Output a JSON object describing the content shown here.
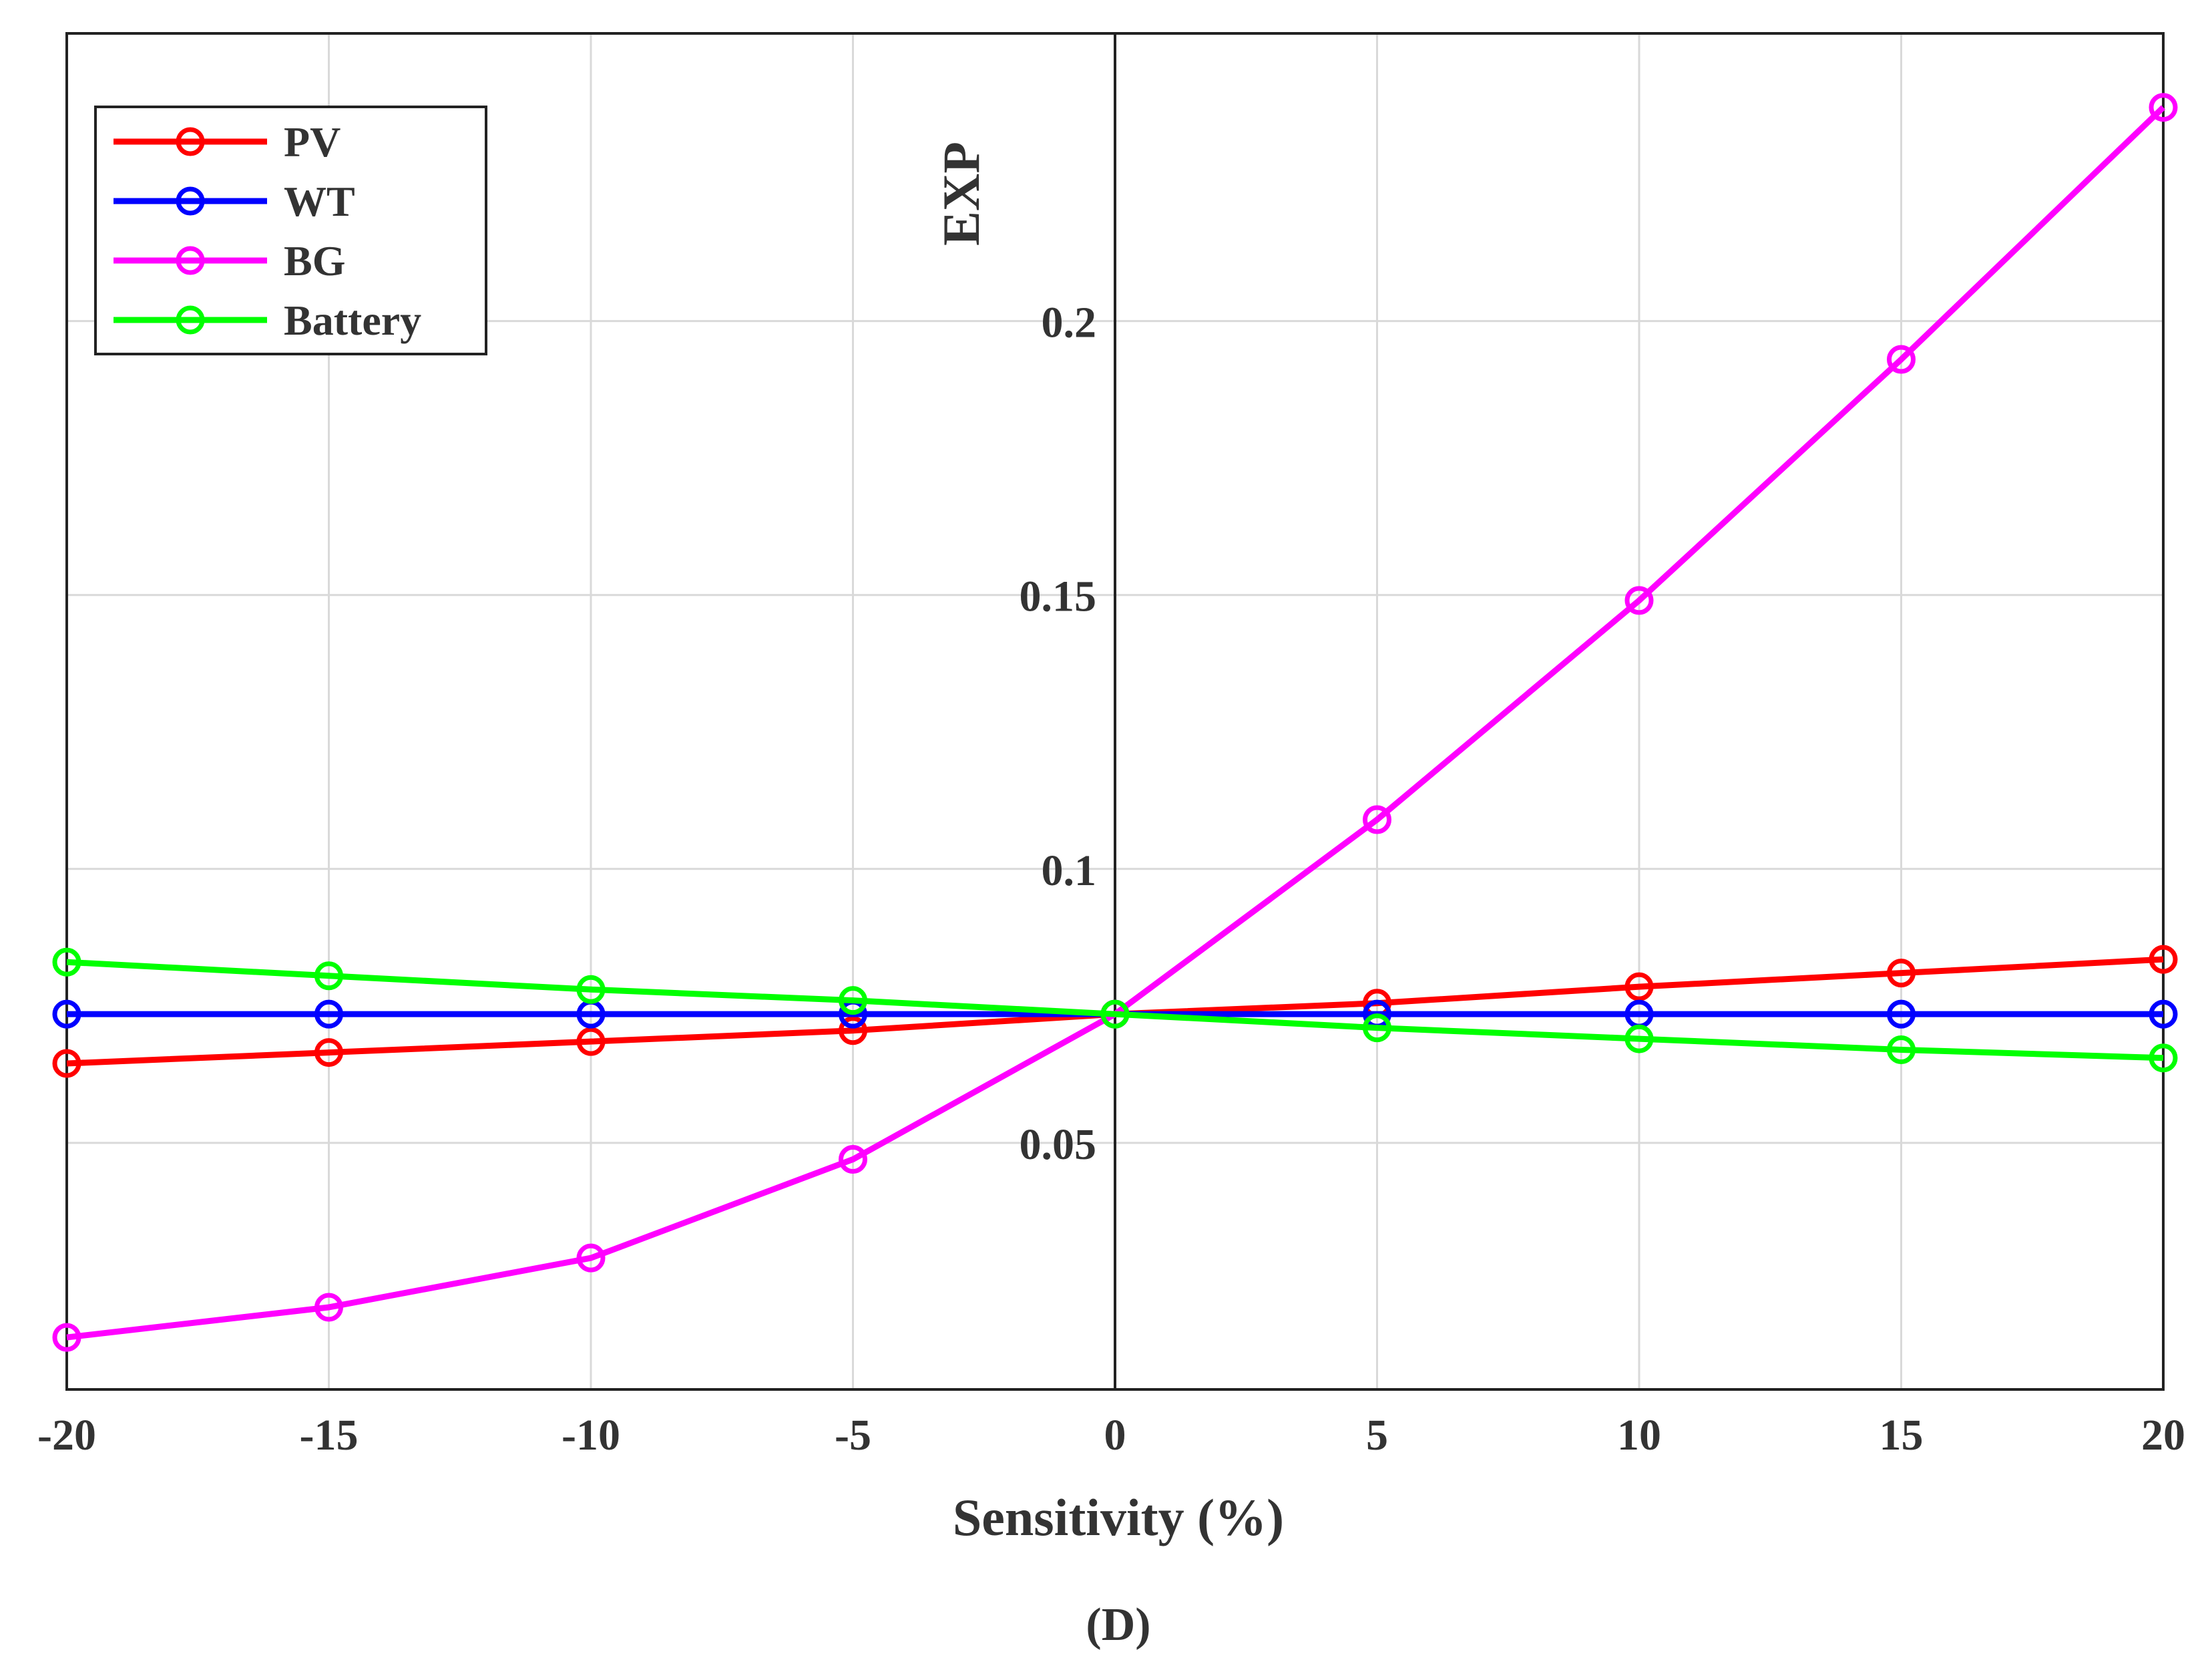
{
  "chart_data": {
    "type": "line",
    "title": "",
    "panel_label": "(D)",
    "xlabel": "Sensitivity (%)",
    "ylabel": "EXP",
    "x": [
      -20,
      -15,
      -10,
      -5,
      0,
      5,
      10,
      15,
      20
    ],
    "xlim": [
      -20,
      20
    ],
    "ylim": [
      0.005,
      0.2525
    ],
    "x_ticks": [
      -20,
      -15,
      -10,
      -5,
      0,
      5,
      10,
      15,
      20
    ],
    "y_ticks": [
      0.05,
      0.1,
      0.15,
      0.2
    ],
    "x_tick_labels": [
      "-20",
      "-15",
      "-10",
      "-5",
      "0",
      "5",
      "10",
      "15",
      "20"
    ],
    "y_tick_labels": [
      "0.05",
      "0.1",
      "0.15",
      "0.2"
    ],
    "grid": true,
    "legend_position": "top-left",
    "marker": "circle",
    "series": [
      {
        "name": "PV",
        "color": "#ff0000",
        "values": [
          0.0645,
          0.0665,
          0.0685,
          0.0705,
          0.0735,
          0.0755,
          0.0785,
          0.081,
          0.0835
        ]
      },
      {
        "name": "WT",
        "color": "#0000ff",
        "values": [
          0.0735,
          0.0735,
          0.0735,
          0.0735,
          0.0735,
          0.0735,
          0.0735,
          0.0735,
          0.0735
        ]
      },
      {
        "name": "BG",
        "color": "#ff00ff",
        "values": [
          0.0145,
          0.02,
          0.029,
          0.047,
          0.0735,
          0.109,
          0.149,
          0.193,
          0.239
        ]
      },
      {
        "name": "Battery",
        "color": "#00ff00",
        "values": [
          0.083,
          0.0805,
          0.078,
          0.076,
          0.0735,
          0.071,
          0.069,
          0.067,
          0.0655
        ]
      }
    ]
  }
}
